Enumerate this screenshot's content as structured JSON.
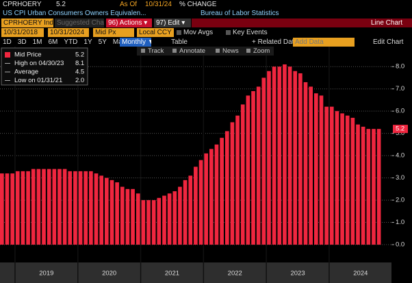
{
  "header": {
    "ticker": "CPRHOERY",
    "last": "5.2",
    "as_of_label": "As Of",
    "as_of": "10/31/24",
    "mode": "% CHANGE",
    "description": "US CPI Urban Consumers Owners Equivalen...",
    "source": "Bureau of Labor Statistics"
  },
  "toolbar": {
    "security": "CPRHOERY Index",
    "suggested": "Suggested Charts »",
    "actions": "96) Actions ▾",
    "edit": "97) Edit ▾",
    "chart_type": "Line Chart",
    "start_date": "10/31/2018",
    "end_date": "10/31/2024",
    "price_field": "Mid Px",
    "currency": "Local CCY",
    "mov_avgs": "Mov Avgs",
    "key_events": "Key Events",
    "ranges": [
      "1D",
      "3D",
      "1M",
      "6M",
      "YTD",
      "1Y",
      "5Y",
      "Max"
    ],
    "frequency": "Monthly ▼",
    "table": "Table",
    "related": "+ Related Dat.",
    "add_data": "Add Data",
    "edit_chart": "Edit Chart",
    "tools": [
      "Track",
      "Annotate",
      "News",
      "Zoom"
    ]
  },
  "legend": {
    "items": [
      {
        "label": "Mid Price",
        "value": "5.2"
      },
      {
        "label": "High on 04/30/23",
        "value": "8.1"
      },
      {
        "label": "Average",
        "value": "4.5"
      },
      {
        "label": "Low on 01/31/21",
        "value": "2.0"
      }
    ]
  },
  "chart_data": {
    "type": "bar",
    "color": "#f0263f",
    "categories": [
      null,
      null,
      null,
      null,
      null,
      null,
      null,
      null,
      null,
      "2019",
      null,
      null,
      null,
      null,
      null,
      null,
      null,
      null,
      null,
      null,
      null,
      "2020",
      null,
      null,
      null,
      null,
      null,
      null,
      null,
      null,
      null,
      null,
      null,
      "2021",
      null,
      null,
      null,
      null,
      null,
      null,
      null,
      null,
      null,
      null,
      null,
      "2022",
      null,
      null,
      null,
      null,
      null,
      null,
      null,
      null,
      null,
      null,
      null,
      "2023",
      null,
      null,
      null,
      null,
      null,
      null,
      null,
      null,
      null,
      null,
      null,
      "2024",
      null,
      null,
      null
    ],
    "values": [
      3.2,
      3.2,
      3.2,
      3.3,
      3.3,
      3.3,
      3.4,
      3.4,
      3.4,
      3.4,
      3.4,
      3.4,
      3.4,
      3.3,
      3.3,
      3.3,
      3.3,
      3.3,
      3.2,
      3.1,
      3.0,
      2.9,
      2.8,
      2.6,
      2.5,
      2.5,
      2.3,
      2.0,
      2.0,
      2.0,
      2.1,
      2.2,
      2.3,
      2.4,
      2.6,
      2.9,
      3.1,
      3.5,
      3.8,
      4.1,
      4.3,
      4.5,
      4.8,
      5.1,
      5.5,
      5.8,
      6.3,
      6.7,
      6.9,
      7.1,
      7.5,
      7.8,
      8.0,
      8.0,
      8.1,
      8.0,
      7.8,
      7.7,
      7.3,
      7.1,
      6.8,
      6.7,
      6.2,
      6.2,
      6.0,
      5.9,
      5.8,
      5.7,
      5.4,
      5.3,
      5.2,
      5.2,
      5.2
    ],
    "ylim": [
      -0.8,
      8.9
    ],
    "yticks": [
      {
        "value": 0,
        "label": "0.0"
      },
      {
        "value": 1,
        "label": "1.0"
      },
      {
        "value": 2,
        "label": "2.0"
      },
      {
        "value": 3,
        "label": "3.0"
      },
      {
        "value": 4,
        "label": "4.0"
      },
      {
        "value": 5,
        "label": "5.0"
      },
      {
        "value": 6,
        "label": "6.0"
      },
      {
        "value": 7,
        "label": "7.0"
      },
      {
        "value": 8,
        "label": "8.0"
      }
    ],
    "grid": true
  }
}
